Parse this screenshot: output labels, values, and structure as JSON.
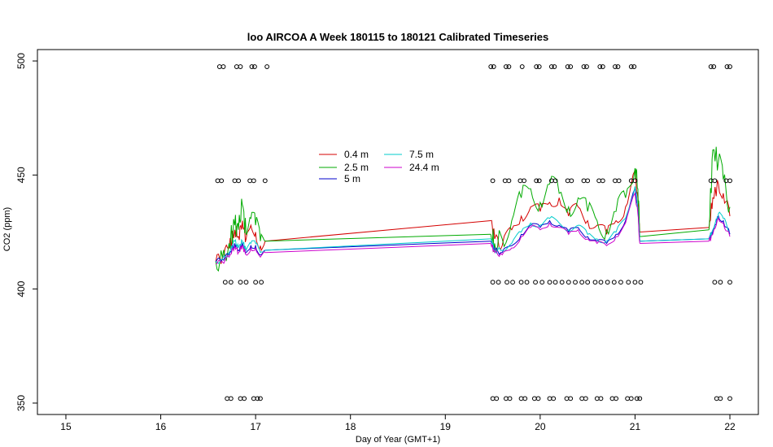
{
  "chart_data": {
    "type": "line",
    "title": "loo AIRCOA A  Week 180115 to 180121  Calibrated Timeseries",
    "xlabel": "Day of Year (GMT+1)",
    "ylabel": "CO2 (ppm)",
    "xlim": [
      14.7,
      22.3
    ],
    "ylim": [
      345,
      505
    ],
    "xticks": [
      "15",
      "16",
      "17",
      "18",
      "19",
      "20",
      "21",
      "22"
    ],
    "yticks": [
      "350",
      "400",
      "450",
      "500"
    ],
    "legend_position": "top-center",
    "grid": false,
    "series": [
      {
        "name": "0.4 m",
        "color": "#d40000",
        "x": [
          16.58,
          16.65,
          16.72,
          16.78,
          16.82,
          16.86,
          16.9,
          16.95,
          17.0,
          17.05,
          17.1,
          19.48,
          19.52,
          19.6,
          19.7,
          19.8,
          19.9,
          20.0,
          20.1,
          20.2,
          20.3,
          20.4,
          20.5,
          20.6,
          20.7,
          20.8,
          20.9,
          21.0,
          21.03,
          21.05,
          21.78,
          21.82,
          21.88,
          21.93,
          22.0
        ],
        "values": [
          412,
          414,
          418,
          426,
          423,
          430,
          422,
          428,
          425,
          419,
          421,
          430,
          422,
          419,
          426,
          432,
          436,
          434,
          438,
          440,
          432,
          436,
          430,
          428,
          424,
          430,
          436,
          452,
          440,
          425,
          427,
          440,
          446,
          442,
          432
        ]
      },
      {
        "name": "2.5 m",
        "color": "#00aa00",
        "x": [
          16.58,
          16.65,
          16.72,
          16.78,
          16.82,
          16.86,
          16.9,
          16.95,
          17.0,
          17.05,
          17.1,
          19.48,
          19.52,
          19.6,
          19.7,
          19.8,
          19.9,
          20.0,
          20.1,
          20.2,
          20.3,
          20.4,
          20.5,
          20.6,
          20.7,
          20.8,
          20.9,
          21.0,
          21.03,
          21.05,
          21.78,
          21.82,
          21.88,
          21.93,
          22.0
        ],
        "values": [
          412,
          414,
          420,
          428,
          426,
          437,
          424,
          431,
          428,
          421,
          421,
          424,
          420,
          422,
          430,
          440,
          444,
          438,
          446,
          442,
          436,
          440,
          434,
          430,
          426,
          434,
          440,
          453,
          444,
          423,
          426,
          461,
          456,
          448,
          436
        ]
      },
      {
        "name": "5 m",
        "color": "#0000cc",
        "x": [
          16.58,
          16.65,
          16.72,
          16.78,
          16.82,
          16.86,
          16.9,
          16.95,
          17.0,
          17.05,
          17.1,
          19.48,
          19.52,
          19.6,
          19.7,
          19.8,
          19.9,
          20.0,
          20.1,
          20.2,
          20.3,
          20.4,
          20.5,
          20.6,
          20.7,
          20.8,
          20.9,
          21.0,
          21.03,
          21.05,
          21.78,
          21.82,
          21.88,
          21.93,
          22.0
        ],
        "values": [
          412,
          413,
          415,
          420,
          417,
          420,
          416,
          419,
          419,
          415,
          417,
          421,
          417,
          416,
          419,
          424,
          428,
          427,
          430,
          428,
          425,
          427,
          423,
          421,
          420,
          424,
          430,
          444,
          435,
          421,
          422,
          425,
          432,
          430,
          424
        ]
      },
      {
        "name": "7.5 m",
        "color": "#00cccc",
        "x": [
          16.58,
          16.65,
          16.72,
          16.78,
          16.82,
          16.86,
          16.9,
          16.95,
          17.0,
          17.05,
          17.1,
          19.48,
          19.52,
          19.6,
          19.7,
          19.8,
          19.9,
          20.0,
          20.1,
          20.2,
          20.3,
          20.4,
          20.5,
          20.6,
          20.7,
          20.8,
          20.9,
          21.0,
          21.03,
          21.05,
          21.78,
          21.82,
          21.88,
          21.93,
          22.0
        ],
        "values": [
          412,
          413,
          416,
          421,
          418,
          421,
          417,
          420,
          420,
          416,
          417,
          422,
          417,
          417,
          420,
          425,
          429,
          428,
          431,
          429,
          426,
          428,
          424,
          422,
          421,
          425,
          431,
          445,
          436,
          421,
          422,
          426,
          433,
          431,
          425
        ]
      },
      {
        "name": "24.4 m",
        "color": "#cc00cc",
        "x": [
          16.58,
          16.65,
          16.72,
          16.78,
          16.82,
          16.86,
          16.9,
          16.95,
          17.0,
          17.05,
          17.1,
          19.48,
          19.52,
          19.6,
          19.7,
          19.8,
          19.9,
          20.0,
          20.1,
          20.2,
          20.3,
          20.4,
          20.5,
          20.6,
          20.7,
          20.8,
          20.9,
          21.0,
          21.03,
          21.05,
          21.78,
          21.82,
          21.88,
          21.93,
          22.0
        ],
        "values": [
          411,
          412,
          414,
          419,
          416,
          419,
          415,
          418,
          418,
          414,
          416,
          420,
          416,
          415,
          418,
          423,
          427,
          426,
          429,
          427,
          424,
          426,
          422,
          420,
          419,
          423,
          429,
          442,
          433,
          420,
          421,
          424,
          431,
          429,
          423
        ]
      }
    ],
    "flag_markers": {
      "rows": [
        {
          "y": 497.5,
          "x": [
            16.62,
            16.66,
            16.8,
            16.84,
            16.96,
            16.99,
            17.12,
            19.48,
            19.51,
            19.64,
            19.67,
            19.81,
            19.96,
            19.99,
            20.12,
            20.15,
            20.29,
            20.32,
            20.46,
            20.49,
            20.63,
            20.66,
            20.79,
            20.82,
            20.96,
            20.99,
            21.8,
            21.83,
            21.97,
            22.0
          ]
        },
        {
          "y": 447.5,
          "x": [
            16.6,
            16.64,
            16.78,
            16.82,
            16.94,
            16.98,
            17.1,
            19.5,
            19.63,
            19.67,
            19.79,
            19.83,
            19.96,
            19.99,
            20.12,
            20.16,
            20.29,
            20.33,
            20.46,
            20.5,
            20.62,
            20.66,
            20.79,
            20.83,
            20.96,
            21.0,
            21.8,
            21.84,
            21.96,
            22.0
          ]
        },
        {
          "y": 403,
          "x": [
            16.68,
            16.74,
            16.84,
            16.9,
            17.0,
            17.06,
            19.5,
            19.56,
            19.65,
            19.71,
            19.8,
            19.86,
            19.95,
            20.02,
            20.1,
            20.16,
            20.23,
            20.3,
            20.37,
            20.44,
            20.5,
            20.58,
            20.64,
            20.71,
            20.78,
            20.85,
            20.93,
            21.0,
            21.06,
            21.84,
            21.9,
            22.0
          ]
        },
        {
          "y": 352,
          "x": [
            16.7,
            16.74,
            16.84,
            16.88,
            16.98,
            17.02,
            17.05,
            19.5,
            19.54,
            19.64,
            19.68,
            19.8,
            19.84,
            19.94,
            19.98,
            20.1,
            20.14,
            20.28,
            20.32,
            20.44,
            20.48,
            20.6,
            20.64,
            20.76,
            20.8,
            20.92,
            20.96,
            21.02,
            21.05,
            21.86,
            21.9,
            22.0
          ]
        }
      ]
    }
  }
}
